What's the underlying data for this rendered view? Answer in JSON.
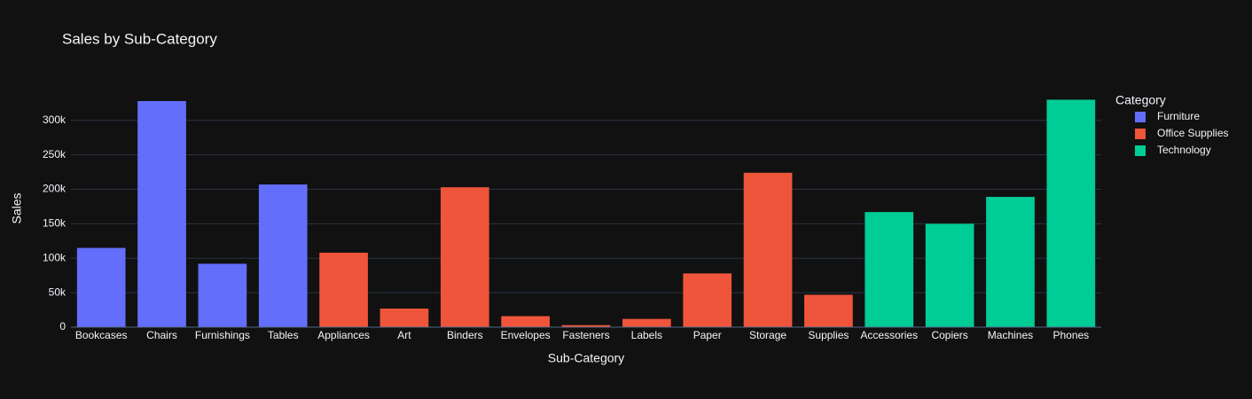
{
  "chart_data": {
    "type": "bar",
    "title": "Sales by Sub-Category",
    "x_label": "Sub-Category",
    "y_label": "Sales",
    "legend_title": "Category",
    "categories": [
      "Bookcases",
      "Chairs",
      "Furnishings",
      "Tables",
      "Appliances",
      "Art",
      "Binders",
      "Envelopes",
      "Fasteners",
      "Labels",
      "Paper",
      "Storage",
      "Supplies",
      "Accessories",
      "Copiers",
      "Machines",
      "Phones"
    ],
    "series": [
      {
        "name": "Furniture",
        "color": "#636efa",
        "values": [
          115000,
          328000,
          92000,
          207000,
          null,
          null,
          null,
          null,
          null,
          null,
          null,
          null,
          null,
          null,
          null,
          null,
          null
        ]
      },
      {
        "name": "Office Supplies",
        "color": "#ef553b",
        "values": [
          null,
          null,
          null,
          null,
          108000,
          27000,
          203000,
          16000,
          3000,
          12000,
          78000,
          224000,
          47000,
          null,
          null,
          null,
          null
        ]
      },
      {
        "name": "Technology",
        "color": "#00cc96",
        "values": [
          null,
          null,
          null,
          null,
          null,
          null,
          null,
          null,
          null,
          null,
          null,
          null,
          null,
          167000,
          150000,
          189000,
          330000
        ]
      }
    ],
    "ylim": [
      0,
      346000
    ],
    "yticks": [
      0,
      {
        "value": 50000,
        "label": "50k"
      },
      {
        "value": 100000,
        "label": "100k"
      },
      {
        "value": 150000,
        "label": "150k"
      },
      {
        "value": 200000,
        "label": "200k"
      },
      {
        "value": 250000,
        "label": "250k"
      },
      {
        "value": 300000,
        "label": "300k"
      }
    ],
    "grid": true,
    "legend": "right"
  }
}
